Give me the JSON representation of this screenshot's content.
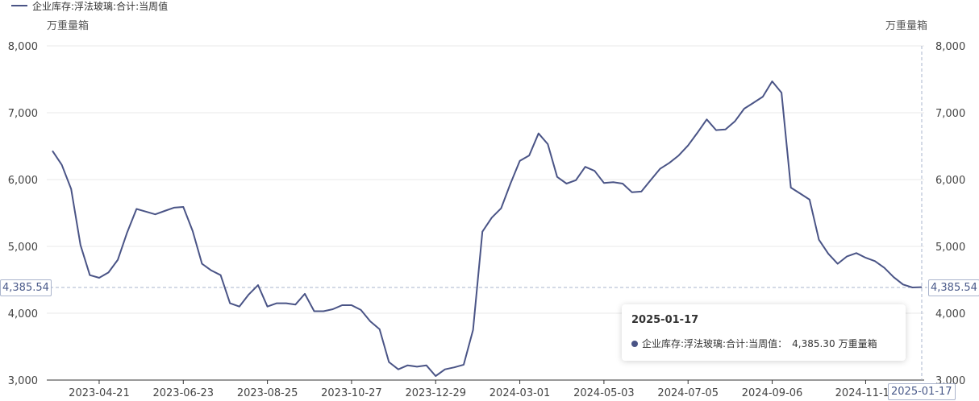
{
  "legend": {
    "label": "企业库存:浮法玻璃:合计:当周值",
    "color": "#4a5486"
  },
  "units": {
    "left": "万重量箱",
    "right": "万重量箱"
  },
  "crosshair": {
    "y_label": "4,385.54",
    "y_value": 4385.54,
    "x_label": "2025-01-17"
  },
  "tooltip": {
    "date": "2025-01-17",
    "series_label": "企业库存:浮法玻璃:合计:当周值：",
    "value": "4,385.30",
    "unit": "万重量箱",
    "dot_color": "#4a5486"
  },
  "chart_data": {
    "type": "line",
    "xlabel": "",
    "ylabel": "万重量箱",
    "ylim": [
      3000,
      8000
    ],
    "yticks": [
      3000,
      4000,
      5000,
      6000,
      7000,
      8000
    ],
    "ytick_labels": [
      "3,000",
      "4,000",
      "5,000",
      "6,000",
      "7,000",
      "8,000"
    ],
    "xtick_labels": [
      "2023-04-21",
      "2023-06-23",
      "2023-08-25",
      "2023-10-27",
      "2023-12-29",
      "2024-03-01",
      "2024-05-03",
      "2024-07-05",
      "2024-09-06",
      "2024-11-15"
    ],
    "xtick_index": [
      5,
      14,
      23,
      32,
      41,
      50,
      59,
      68,
      77,
      87
    ],
    "grid": true,
    "legend_position": "top-left",
    "series": [
      {
        "name": "企业库存:浮法玻璃:合计:当周值",
        "color": "#4a5486",
        "values": [
          6430,
          6220,
          5860,
          5020,
          4570,
          4530,
          4610,
          4800,
          5210,
          5560,
          5520,
          5480,
          5530,
          5580,
          5590,
          5230,
          4740,
          4640,
          4570,
          4150,
          4100,
          4280,
          4420,
          4100,
          4150,
          4150,
          4130,
          4290,
          4030,
          4030,
          4060,
          4120,
          4120,
          4050,
          3880,
          3760,
          3270,
          3160,
          3220,
          3200,
          3220,
          3060,
          3160,
          3190,
          3230,
          3750,
          5220,
          5430,
          5570,
          5940,
          6280,
          6360,
          6690,
          6530,
          6040,
          5940,
          5990,
          6190,
          6130,
          5950,
          5960,
          5940,
          5810,
          5820,
          5990,
          6160,
          6250,
          6360,
          6510,
          6700,
          6900,
          6740,
          6750,
          6870,
          7060,
          7150,
          7240,
          7470,
          7300,
          5880,
          5790,
          5700,
          5100,
          4890,
          4740,
          4850,
          4900,
          4830,
          4780,
          4680,
          4540,
          4430,
          4385.3,
          4390
        ]
      }
    ]
  }
}
